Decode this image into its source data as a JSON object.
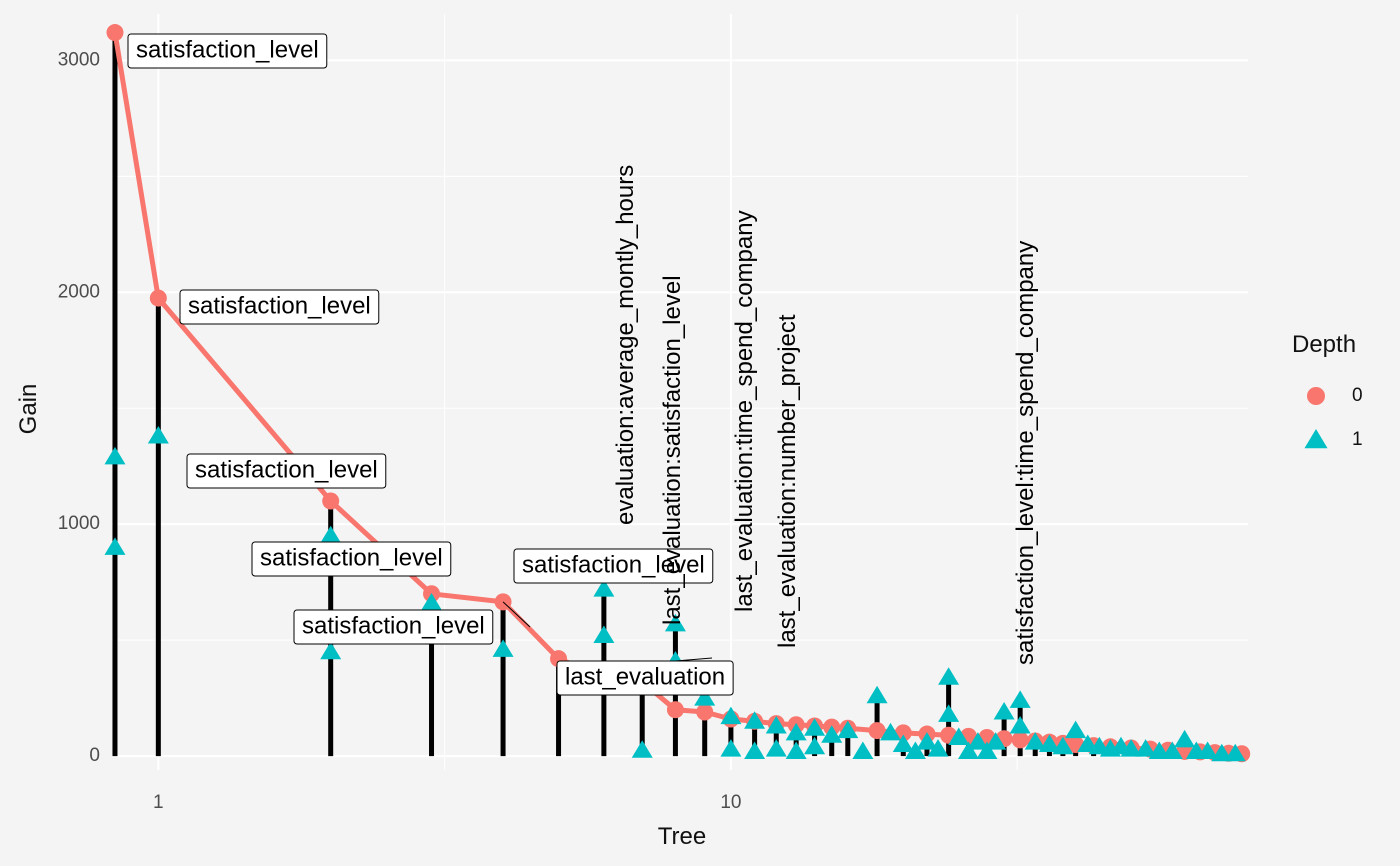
{
  "chart_data": {
    "type": "scatter",
    "xlabel": "Tree",
    "ylabel": "Gain",
    "x_scale": "log",
    "xlim": [
      0.83,
      80
    ],
    "ylim": [
      -60,
      3200
    ],
    "x_ticks": [
      {
        "value": 1,
        "label": "1"
      },
      {
        "value": 10,
        "label": "10"
      }
    ],
    "y_ticks": [
      {
        "value": 0,
        "label": "0"
      },
      {
        "value": 1000,
        "label": "1000"
      },
      {
        "value": 2000,
        "label": "2000"
      },
      {
        "value": 3000,
        "label": "3000"
      }
    ],
    "grid": true,
    "legend": {
      "title": "Depth",
      "position": "right",
      "entries": [
        {
          "label": "0",
          "shape": "circle",
          "color": "#F8766D"
        },
        {
          "label": "1",
          "shape": "triangle",
          "color": "#00BFC4"
        }
      ]
    },
    "series": [
      {
        "name": "0",
        "shape": "circle",
        "color": "#F8766D",
        "line": true,
        "points": [
          {
            "x": 0.84,
            "y": 3120
          },
          {
            "x": 1,
            "y": 1975
          },
          {
            "x": 2,
            "y": 1100
          },
          {
            "x": 3,
            "y": 700
          },
          {
            "x": 4,
            "y": 665
          },
          {
            "x": 5,
            "y": 420
          },
          {
            "x": 6,
            "y": 340
          },
          {
            "x": 7,
            "y": 320
          },
          {
            "x": 8,
            "y": 200
          },
          {
            "x": 9,
            "y": 190
          },
          {
            "x": 10,
            "y": 160
          },
          {
            "x": 11,
            "y": 150
          },
          {
            "x": 12,
            "y": 140
          },
          {
            "x": 13,
            "y": 135
          },
          {
            "x": 14,
            "y": 130
          },
          {
            "x": 15,
            "y": 125
          },
          {
            "x": 16,
            "y": 120
          },
          {
            "x": 18,
            "y": 110
          },
          {
            "x": 20,
            "y": 100
          },
          {
            "x": 22,
            "y": 95
          },
          {
            "x": 24,
            "y": 90
          },
          {
            "x": 26,
            "y": 85
          },
          {
            "x": 28,
            "y": 80
          },
          {
            "x": 30,
            "y": 75
          },
          {
            "x": 32,
            "y": 70
          },
          {
            "x": 34,
            "y": 65
          },
          {
            "x": 36,
            "y": 60
          },
          {
            "x": 38,
            "y": 55
          },
          {
            "x": 40,
            "y": 50
          },
          {
            "x": 43,
            "y": 45
          },
          {
            "x": 46,
            "y": 40
          },
          {
            "x": 50,
            "y": 35
          },
          {
            "x": 54,
            "y": 30
          },
          {
            "x": 58,
            "y": 25
          },
          {
            "x": 62,
            "y": 20
          },
          {
            "x": 66,
            "y": 18
          },
          {
            "x": 70,
            "y": 15
          },
          {
            "x": 74,
            "y": 12
          },
          {
            "x": 78,
            "y": 10
          }
        ]
      },
      {
        "name": "1",
        "shape": "triangle",
        "color": "#00BFC4",
        "line": false,
        "points": [
          {
            "x": 0.84,
            "y": 1290
          },
          {
            "x": 0.84,
            "y": 900
          },
          {
            "x": 1,
            "y": 1380
          },
          {
            "x": 2,
            "y": 950
          },
          {
            "x": 2,
            "y": 450
          },
          {
            "x": 3,
            "y": 660
          },
          {
            "x": 4,
            "y": 460
          },
          {
            "x": 6,
            "y": 720
          },
          {
            "x": 6,
            "y": 520
          },
          {
            "x": 7,
            "y": 25
          },
          {
            "x": 8,
            "y": 570
          },
          {
            "x": 8,
            "y": 410
          },
          {
            "x": 9,
            "y": 250
          },
          {
            "x": 10,
            "y": 170
          },
          {
            "x": 10,
            "y": 30
          },
          {
            "x": 11,
            "y": 150
          },
          {
            "x": 11,
            "y": 20
          },
          {
            "x": 12,
            "y": 130
          },
          {
            "x": 12,
            "y": 30
          },
          {
            "x": 13,
            "y": 100
          },
          {
            "x": 13,
            "y": 20
          },
          {
            "x": 14,
            "y": 120
          },
          {
            "x": 14,
            "y": 40
          },
          {
            "x": 15,
            "y": 90
          },
          {
            "x": 16,
            "y": 110
          },
          {
            "x": 17,
            "y": 20
          },
          {
            "x": 18,
            "y": 260
          },
          {
            "x": 19,
            "y": 100
          },
          {
            "x": 20,
            "y": 50
          },
          {
            "x": 21,
            "y": 20
          },
          {
            "x": 22,
            "y": 60
          },
          {
            "x": 23,
            "y": 30
          },
          {
            "x": 24,
            "y": 340
          },
          {
            "x": 24,
            "y": 180
          },
          {
            "x": 25,
            "y": 80
          },
          {
            "x": 26,
            "y": 20
          },
          {
            "x": 27,
            "y": 60
          },
          {
            "x": 28,
            "y": 20
          },
          {
            "x": 29,
            "y": 60
          },
          {
            "x": 30,
            "y": 190
          },
          {
            "x": 32,
            "y": 240
          },
          {
            "x": 32,
            "y": 130
          },
          {
            "x": 34,
            "y": 60
          },
          {
            "x": 36,
            "y": 50
          },
          {
            "x": 38,
            "y": 40
          },
          {
            "x": 40,
            "y": 110
          },
          {
            "x": 42,
            "y": 50
          },
          {
            "x": 44,
            "y": 40
          },
          {
            "x": 46,
            "y": 30
          },
          {
            "x": 48,
            "y": 40
          },
          {
            "x": 50,
            "y": 30
          },
          {
            "x": 53,
            "y": 30
          },
          {
            "x": 56,
            "y": 20
          },
          {
            "x": 59,
            "y": 20
          },
          {
            "x": 62,
            "y": 70
          },
          {
            "x": 65,
            "y": 20
          },
          {
            "x": 68,
            "y": 20
          },
          {
            "x": 72,
            "y": 10
          },
          {
            "x": 76,
            "y": 10
          }
        ]
      }
    ],
    "stems": [
      {
        "x": 0.84,
        "y": 3120
      },
      {
        "x": 1,
        "y": 1975
      },
      {
        "x": 2,
        "y": 1100
      },
      {
        "x": 3,
        "y": 700
      },
      {
        "x": 4,
        "y": 665
      },
      {
        "x": 5,
        "y": 420
      },
      {
        "x": 6,
        "y": 720
      },
      {
        "x": 7,
        "y": 320
      },
      {
        "x": 8,
        "y": 570
      },
      {
        "x": 9,
        "y": 250
      },
      {
        "x": 10,
        "y": 170
      },
      {
        "x": 11,
        "y": 150
      },
      {
        "x": 12,
        "y": 140
      },
      {
        "x": 13,
        "y": 135
      },
      {
        "x": 14,
        "y": 130
      },
      {
        "x": 15,
        "y": 125
      },
      {
        "x": 16,
        "y": 120
      },
      {
        "x": 18,
        "y": 260
      },
      {
        "x": 20,
        "y": 100
      },
      {
        "x": 22,
        "y": 95
      },
      {
        "x": 24,
        "y": 340
      },
      {
        "x": 26,
        "y": 85
      },
      {
        "x": 28,
        "y": 80
      },
      {
        "x": 30,
        "y": 190
      },
      {
        "x": 32,
        "y": 240
      },
      {
        "x": 34,
        "y": 65
      },
      {
        "x": 36,
        "y": 60
      },
      {
        "x": 38,
        "y": 55
      },
      {
        "x": 40,
        "y": 110
      },
      {
        "x": 43,
        "y": 45
      },
      {
        "x": 46,
        "y": 40
      },
      {
        "x": 50,
        "y": 35
      },
      {
        "x": 54,
        "y": 30
      },
      {
        "x": 58,
        "y": 25
      },
      {
        "x": 62,
        "y": 70
      },
      {
        "x": 66,
        "y": 18
      },
      {
        "x": 70,
        "y": 15
      },
      {
        "x": 74,
        "y": 12
      },
      {
        "x": 78,
        "y": 10
      }
    ],
    "annotations": [
      {
        "text": "satisfaction_level",
        "x": 0.84,
        "y": 3120,
        "boxed": true
      },
      {
        "text": "satisfaction_level",
        "x": 1,
        "y": 1975,
        "boxed": true
      },
      {
        "text": "satisfaction_level",
        "x": 2,
        "y": 1100,
        "boxed": true
      },
      {
        "text": "satisfaction_level",
        "x": 3,
        "y": 700,
        "boxed": true
      },
      {
        "text": "satisfaction_level",
        "x": 4,
        "y": 665,
        "boxed": true
      },
      {
        "text": "satisfaction_level",
        "x": 5,
        "y": 420,
        "boxed": true
      },
      {
        "text": "last_evaluation",
        "x": 8,
        "y": 410,
        "boxed": true
      },
      {
        "text": "evaluation:average_montly_hours",
        "x": 6,
        "y": 720,
        "boxed": false
      },
      {
        "text": "last_evaluation:satisfaction_level",
        "x": 7,
        "y": 320,
        "boxed": false
      },
      {
        "text": "last_evaluation:time_spend_company",
        "x": 8,
        "y": 570,
        "boxed": false
      },
      {
        "text": "last_evaluation:number_project",
        "x": 9,
        "y": 250,
        "boxed": false
      },
      {
        "text": "satisfaction_level:time_spend_company",
        "x": 24,
        "y": 340,
        "boxed": false
      }
    ]
  }
}
